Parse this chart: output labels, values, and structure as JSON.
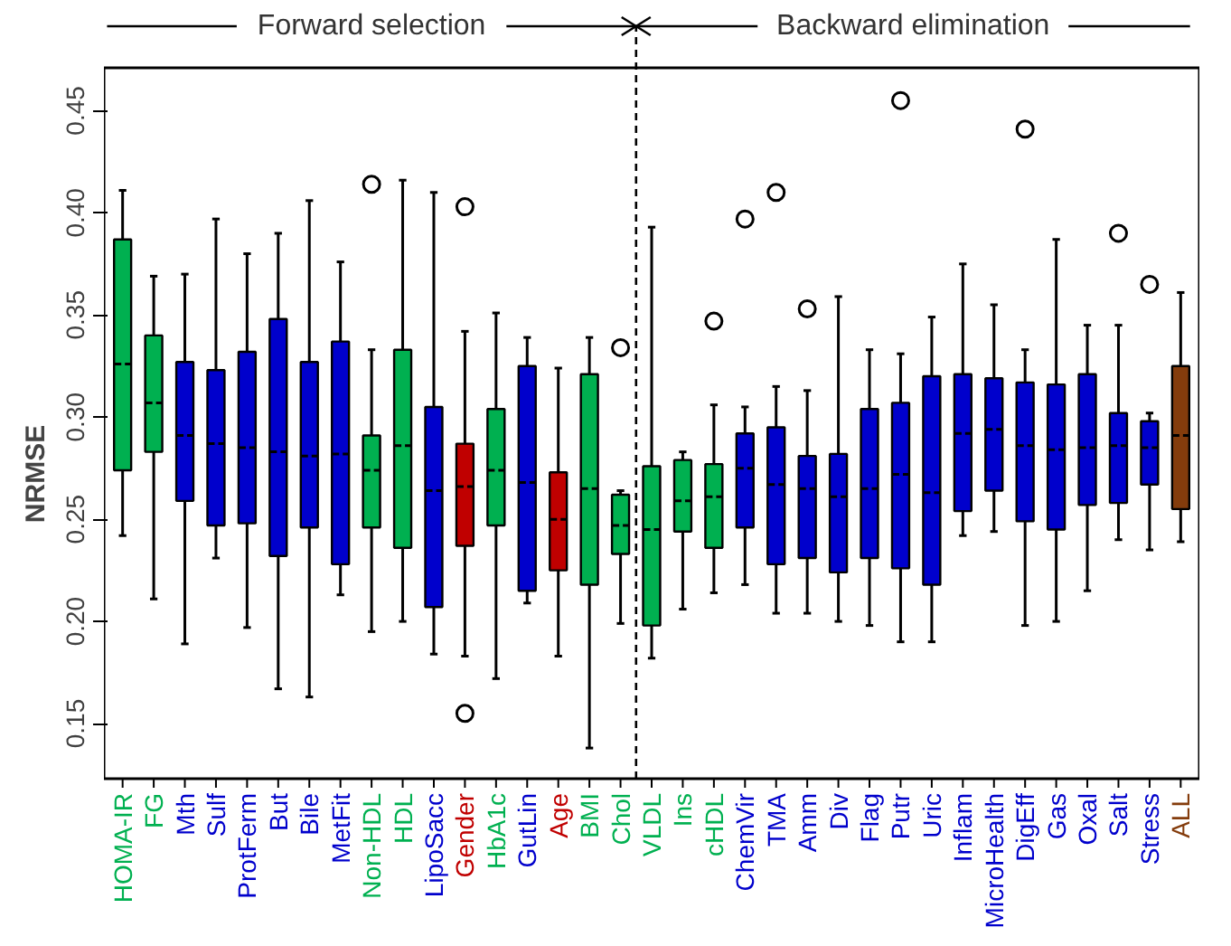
{
  "chart_data": {
    "type": "box",
    "ylabel": "NRMSE",
    "categories": [
      "HOMA-IR",
      "FG",
      "Mth",
      "Sulf",
      "ProtFerm",
      "But",
      "Bile",
      "MetFit",
      "Non-HDL",
      "HDL",
      "LipoSacc",
      "Gender",
      "HbA1c",
      "GutLin",
      "Age",
      "BMI",
      "Chol",
      "VLDL",
      "Ins",
      "cHDL",
      "ChemVir",
      "TMA",
      "Amm",
      "Div",
      "Flag",
      "Putr",
      "Uric",
      "Inflam",
      "MicroHealth",
      "DigEff",
      "Gas",
      "Oxal",
      "Salt",
      "Stress",
      "ALL"
    ],
    "colors": [
      "#00b050",
      "#00b050",
      "#0000cc",
      "#0000cc",
      "#0000cc",
      "#0000cc",
      "#0000cc",
      "#0000cc",
      "#00b050",
      "#00b050",
      "#0000cc",
      "#c00000",
      "#00b050",
      "#0000cc",
      "#c00000",
      "#00b050",
      "#00b050",
      "#00b050",
      "#00b050",
      "#00b050",
      "#0000cc",
      "#0000cc",
      "#0000cc",
      "#0000cc",
      "#0000cc",
      "#0000cc",
      "#0000cc",
      "#0000cc",
      "#0000cc",
      "#0000cc",
      "#0000cc",
      "#0000cc",
      "#0000cc",
      "#0000cc",
      "#843c0c"
    ],
    "boxes": [
      {
        "low": 0.242,
        "q1": 0.274,
        "median": 0.326,
        "q3": 0.387,
        "high": 0.411
      },
      {
        "low": 0.211,
        "q1": 0.283,
        "median": 0.307,
        "q3": 0.34,
        "high": 0.369
      },
      {
        "low": 0.189,
        "q1": 0.259,
        "median": 0.291,
        "q3": 0.327,
        "high": 0.37
      },
      {
        "low": 0.231,
        "q1": 0.247,
        "median": 0.287,
        "q3": 0.323,
        "high": 0.397
      },
      {
        "low": 0.197,
        "q1": 0.248,
        "median": 0.285,
        "q3": 0.332,
        "high": 0.38
      },
      {
        "low": 0.167,
        "q1": 0.232,
        "median": 0.283,
        "q3": 0.348,
        "high": 0.39
      },
      {
        "low": 0.163,
        "q1": 0.246,
        "median": 0.281,
        "q3": 0.327,
        "high": 0.406
      },
      {
        "low": 0.213,
        "q1": 0.228,
        "median": 0.282,
        "q3": 0.337,
        "high": 0.376
      },
      {
        "low": 0.195,
        "q1": 0.246,
        "median": 0.274,
        "q3": 0.291,
        "high": 0.333,
        "outliers": [
          0.414
        ]
      },
      {
        "low": 0.2,
        "q1": 0.236,
        "median": 0.286,
        "q3": 0.333,
        "high": 0.416
      },
      {
        "low": 0.184,
        "q1": 0.207,
        "median": 0.264,
        "q3": 0.305,
        "high": 0.41
      },
      {
        "low": 0.183,
        "q1": 0.237,
        "median": 0.266,
        "q3": 0.287,
        "high": 0.342,
        "outliers": [
          0.403,
          0.155
        ]
      },
      {
        "low": 0.172,
        "q1": 0.247,
        "median": 0.274,
        "q3": 0.304,
        "high": 0.351
      },
      {
        "low": 0.209,
        "q1": 0.215,
        "median": 0.268,
        "q3": 0.325,
        "high": 0.339
      },
      {
        "low": 0.183,
        "q1": 0.225,
        "median": 0.25,
        "q3": 0.273,
        "high": 0.324
      },
      {
        "low": 0.138,
        "q1": 0.218,
        "median": 0.265,
        "q3": 0.321,
        "high": 0.339
      },
      {
        "low": 0.199,
        "q1": 0.233,
        "median": 0.247,
        "q3": 0.262,
        "high": 0.264,
        "outliers": [
          0.334
        ]
      },
      {
        "low": 0.182,
        "q1": 0.198,
        "median": 0.245,
        "q3": 0.276,
        "high": 0.393
      },
      {
        "low": 0.206,
        "q1": 0.244,
        "median": 0.259,
        "q3": 0.279,
        "high": 0.283
      },
      {
        "low": 0.214,
        "q1": 0.236,
        "median": 0.261,
        "q3": 0.277,
        "high": 0.306,
        "outliers": [
          0.347
        ]
      },
      {
        "low": 0.218,
        "q1": 0.246,
        "median": 0.275,
        "q3": 0.292,
        "high": 0.305,
        "outliers": [
          0.397
        ]
      },
      {
        "low": 0.204,
        "q1": 0.228,
        "median": 0.267,
        "q3": 0.295,
        "high": 0.315,
        "outliers": [
          0.41
        ]
      },
      {
        "low": 0.204,
        "q1": 0.231,
        "median": 0.265,
        "q3": 0.281,
        "high": 0.313,
        "outliers": [
          0.353
        ]
      },
      {
        "low": 0.2,
        "q1": 0.224,
        "median": 0.261,
        "q3": 0.282,
        "high": 0.359
      },
      {
        "low": 0.198,
        "q1": 0.231,
        "median": 0.265,
        "q3": 0.304,
        "high": 0.333
      },
      {
        "low": 0.19,
        "q1": 0.226,
        "median": 0.272,
        "q3": 0.307,
        "high": 0.331,
        "outliers": [
          0.455
        ]
      },
      {
        "low": 0.19,
        "q1": 0.218,
        "median": 0.263,
        "q3": 0.32,
        "high": 0.349
      },
      {
        "low": 0.242,
        "q1": 0.254,
        "median": 0.292,
        "q3": 0.321,
        "high": 0.375
      },
      {
        "low": 0.244,
        "q1": 0.264,
        "median": 0.294,
        "q3": 0.319,
        "high": 0.355
      },
      {
        "low": 0.198,
        "q1": 0.249,
        "median": 0.286,
        "q3": 0.317,
        "high": 0.333,
        "outliers": [
          0.441
        ]
      },
      {
        "low": 0.2,
        "q1": 0.245,
        "median": 0.284,
        "q3": 0.316,
        "high": 0.387
      },
      {
        "low": 0.215,
        "q1": 0.257,
        "median": 0.285,
        "q3": 0.321,
        "high": 0.345
      },
      {
        "low": 0.24,
        "q1": 0.258,
        "median": 0.286,
        "q3": 0.302,
        "high": 0.345,
        "outliers": [
          0.39
        ]
      },
      {
        "low": 0.235,
        "q1": 0.267,
        "median": 0.285,
        "q3": 0.298,
        "high": 0.302,
        "outliers": [
          0.365
        ]
      },
      {
        "low": 0.239,
        "q1": 0.255,
        "median": 0.291,
        "q3": 0.325,
        "high": 0.361
      }
    ],
    "ylim": [
      0.123,
      0.471
    ],
    "yticks": [
      {
        "value": 0.15,
        "label": "0.15"
      },
      {
        "value": 0.2,
        "label": "0.20"
      },
      {
        "value": 0.25,
        "label": "0.25"
      },
      {
        "value": 0.3,
        "label": "0.30"
      },
      {
        "value": 0.35,
        "label": "0.35"
      },
      {
        "value": 0.4,
        "label": "0.40"
      },
      {
        "value": 0.45,
        "label": "0.45"
      }
    ],
    "grid": false,
    "annotations": [
      "Forward selection",
      "Backward elimination"
    ]
  }
}
